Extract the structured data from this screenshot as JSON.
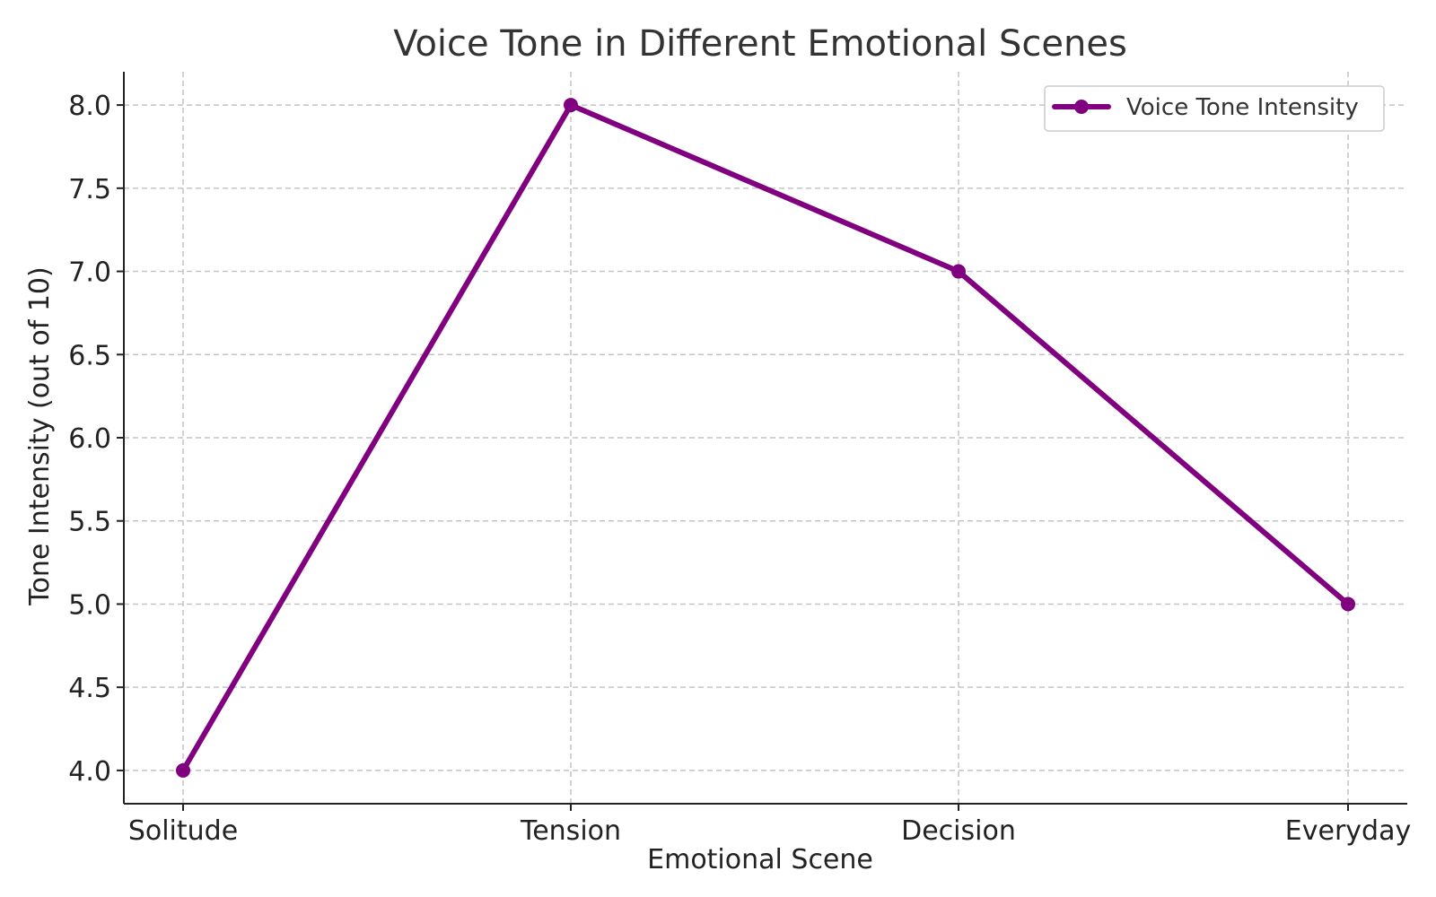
{
  "chart_data": {
    "type": "line",
    "title": "Voice Tone in Different Emotional Scenes",
    "xlabel": "Emotional Scene",
    "ylabel": "Tone Intensity (out of 10)",
    "categories": [
      "Solitude",
      "Tension",
      "Decision",
      "Everyday"
    ],
    "series": [
      {
        "name": "Voice Tone Intensity",
        "values": [
          4,
          8,
          7,
          5
        ],
        "color": "#800080",
        "marker": "circle"
      }
    ],
    "ylim": [
      3.8,
      8.2
    ],
    "yticks": [
      4.0,
      4.5,
      5.0,
      5.5,
      6.0,
      6.5,
      7.0,
      7.5,
      8.0
    ],
    "ytick_labels": [
      "4.0",
      "4.5",
      "5.0",
      "5.5",
      "6.0",
      "6.5",
      "7.0",
      "7.5",
      "8.0"
    ],
    "grid": true,
    "legend_position": "top-right"
  }
}
